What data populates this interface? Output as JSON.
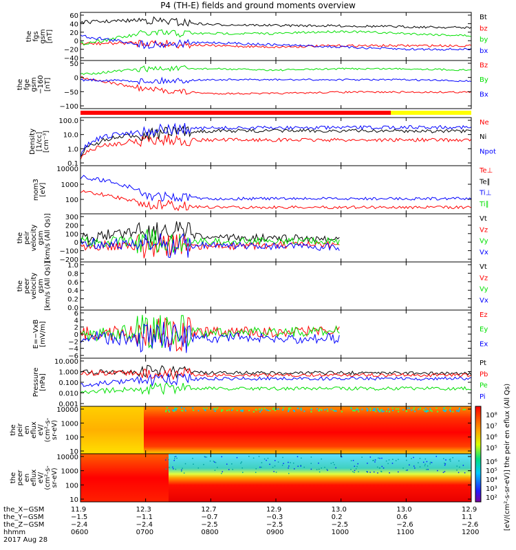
{
  "title": "P4 (TH-E) fields and ground moments overview",
  "colors": {
    "black": "#000000",
    "red": "#ff0000",
    "green": "#00e000",
    "blue": "#0000ff",
    "yellow": "#ffff00"
  },
  "panels": [
    {
      "id": "fgs",
      "ylabel": [
        "the",
        "fgs",
        "gsm",
        "[nT]"
      ],
      "ticks": [
        "60",
        "40",
        "20",
        "0",
        "−20",
        "−40"
      ],
      "legend": [
        {
          "t": "Bt",
          "c": "black"
        },
        {
          "t": "bz",
          "c": "red"
        },
        {
          "t": "by",
          "c": "green"
        },
        {
          "t": "bx",
          "c": "blue"
        }
      ]
    },
    {
      "id": "fge",
      "ylabel": [
        "the",
        "fge",
        "gsm",
        "−160",
        "[nT]"
      ],
      "ticks": [
        "50",
        "0",
        "−50",
        "−100"
      ],
      "legend": [
        {
          "t": "Bz",
          "c": "red"
        },
        {
          "t": "By",
          "c": "green"
        },
        {
          "t": "Bx",
          "c": "blue"
        }
      ]
    },
    {
      "id": "dens",
      "ylabel": [
        "Density",
        "[1/cc]",
        "[cm⁻³]"
      ],
      "ticks": [
        "100.0",
        "10.0",
        "1.0",
        "0.1"
      ],
      "legend": [
        {
          "t": "Ne",
          "c": "red"
        },
        {
          "t": "Ni",
          "c": "black"
        },
        {
          "t": "Npot",
          "c": "blue"
        }
      ]
    },
    {
      "id": "temp",
      "ylabel": [
        "mom3",
        "[eV]"
      ],
      "ticks": [
        "1000",
        "100"
      ],
      "ticks2": [
        "10000"
      ],
      "legend": [
        {
          "t": "Te⊥",
          "c": "red"
        },
        {
          "t": "Te∥",
          "c": "black"
        },
        {
          "t": "Ti⊥",
          "c": "blue"
        },
        {
          "t": "Ti∥",
          "c": "green"
        }
      ]
    },
    {
      "id": "vi",
      "ylabel": [
        "the",
        "peir",
        "velocity",
        "gsm",
        "[km/s (All Qs)]"
      ],
      "ticks": [
        "300",
        "200",
        "100",
        "0",
        "−100",
        "−200"
      ],
      "legend": [
        {
          "t": "Vt",
          "c": "black"
        },
        {
          "t": "Vz",
          "c": "red"
        },
        {
          "t": "Vy",
          "c": "green"
        },
        {
          "t": "Vx",
          "c": "blue"
        }
      ]
    },
    {
      "id": "ve",
      "ylabel": [
        "the",
        "peer",
        "velocity",
        "gsm",
        "[km/s (All Qs)]"
      ],
      "ticks": [
        "1.0",
        "0.8",
        "0.6",
        "0.4",
        "0.2",
        "0.0"
      ],
      "legend": [
        {
          "t": "Vt",
          "c": "black"
        },
        {
          "t": "Vz",
          "c": "red"
        },
        {
          "t": "Vy",
          "c": "green"
        },
        {
          "t": "Vx",
          "c": "blue"
        }
      ]
    },
    {
      "id": "ef",
      "ylabel": [
        "E=−VxB",
        "[mV/m]"
      ],
      "ticks": [
        "6",
        "4",
        "2",
        "0",
        "−2",
        "−4",
        "−6"
      ],
      "legend": [
        {
          "t": "Ez",
          "c": "red"
        },
        {
          "t": "Ey",
          "c": "green"
        },
        {
          "t": "Ex",
          "c": "blue"
        }
      ]
    },
    {
      "id": "pres",
      "ylabel": [
        "Pressure",
        "[nPa]"
      ],
      "ticks": [
        "10.000",
        "1.000",
        "0.100",
        "0.010",
        "0.001"
      ],
      "legend": [
        {
          "t": "Pt",
          "c": "black"
        },
        {
          "t": "Pb",
          "c": "red"
        },
        {
          "t": "Pe",
          "c": "green"
        },
        {
          "t": "Pi",
          "c": "blue"
        }
      ]
    },
    {
      "id": "ispec",
      "ylabel": [
        "the",
        "peir",
        "en",
        "eflux",
        "eV/",
        "(cm²-s-",
        "sr-eV)"
      ],
      "ticks": [
        "10000",
        "1000",
        "100",
        "10"
      ],
      "legend": []
    },
    {
      "id": "espec",
      "ylabel": [
        "the",
        "peer",
        "en",
        "eflux",
        "eV/",
        "(cm²-s-",
        "sr-eV)"
      ],
      "ticks": [
        "10000",
        "1000",
        "100",
        "10"
      ],
      "legend": []
    }
  ],
  "colorbar": {
    "ticks_top": [
      "10⁸",
      "10⁷",
      "10⁶",
      "10⁵"
    ],
    "ticks_bottom": [
      "10⁶",
      "10⁵",
      "10⁴",
      "10³",
      "10²"
    ],
    "label": "[eV/(cm²-s-sr-eV)] the peir en eflux (All Qs)"
  },
  "xaxis": {
    "rows": [
      {
        "name": "the_X−GSM",
        "vals": [
          "11.9",
          "12.3",
          "12.7",
          "12.9",
          "13.0",
          "13.0",
          "12.9"
        ]
      },
      {
        "name": "the_Y−GSM",
        "vals": [
          "−1.5",
          "−1.1",
          "−0.7",
          "−0.3",
          "0.2",
          "0.6",
          "1.1"
        ]
      },
      {
        "name": "the_Z−GSM",
        "vals": [
          "−2.4",
          "−2.4",
          "−2.5",
          "−2.5",
          "−2.5",
          "−2.6",
          "−2.6"
        ]
      },
      {
        "name": "hhmm",
        "vals": [
          "0600",
          "0700",
          "0800",
          "0900",
          "1000",
          "1100",
          "1200"
        ]
      }
    ],
    "date": "2017 Aug 28"
  },
  "chart_data": {
    "type": "line",
    "x": [
      "0600",
      "0700",
      "0800",
      "0900",
      "1000",
      "1100",
      "1200"
    ],
    "series": [
      {
        "name": "Bt",
        "panel": "fgs",
        "values": [
          40,
          45,
          35,
          33,
          32,
          30,
          28
        ]
      },
      {
        "name": "bz",
        "panel": "fgs",
        "values": [
          -8,
          -5,
          -12,
          -15,
          -12,
          -12,
          -12
        ]
      },
      {
        "name": "by",
        "panel": "fgs",
        "values": [
          -8,
          15,
          15,
          15,
          20,
          15,
          10
        ]
      },
      {
        "name": "bx",
        "panel": "fgs",
        "values": [
          10,
          -10,
          -5,
          -10,
          -15,
          -20,
          -20
        ]
      },
      {
        "name": "Bz",
        "panel": "fge",
        "values": [
          -5,
          -50,
          -65,
          -65,
          -60,
          -60,
          -60
        ]
      },
      {
        "name": "By",
        "panel": "fge",
        "values": [
          5,
          25,
          25,
          20,
          25,
          25,
          20
        ]
      },
      {
        "name": "Bx",
        "panel": "fge",
        "values": [
          -15,
          -20,
          -15,
          -15,
          -15,
          -15,
          -20
        ]
      },
      {
        "name": "Ne",
        "panel": "dens",
        "values": [
          0.3,
          5,
          5,
          5,
          5,
          5,
          5
        ]
      },
      {
        "name": "Ni",
        "panel": "dens",
        "values": [
          0.3,
          12,
          20,
          20,
          20,
          20,
          18
        ]
      },
      {
        "name": "Npot",
        "panel": "dens",
        "values": [
          0.3,
          20,
          30,
          32,
          32,
          35,
          35
        ]
      },
      {
        "name": "Te⊥",
        "panel": "temp",
        "values": [
          300,
          80,
          60,
          60,
          60,
          60,
          60
        ]
      },
      {
        "name": "Ti⊥",
        "panel": "temp",
        "values": [
          1500,
          200,
          150,
          150,
          150,
          150,
          150
        ]
      },
      {
        "name": "Vt",
        "panel": "vi",
        "values": [
          50,
          150,
          60,
          60,
          50,
          null,
          null
        ]
      },
      {
        "name": "Vz",
        "panel": "vi",
        "values": [
          -10,
          -30,
          -30,
          -20,
          -20,
          null,
          null
        ]
      },
      {
        "name": "Vy",
        "panel": "vi",
        "values": [
          20,
          20,
          20,
          30,
          20,
          null,
          null
        ]
      },
      {
        "name": "Vx",
        "panel": "vi",
        "values": [
          10,
          -20,
          -20,
          -30,
          -40,
          null,
          null
        ]
      },
      {
        "name": "Ez",
        "panel": "ef",
        "values": [
          0.5,
          0,
          0.5,
          0.5,
          1,
          null,
          null
        ]
      },
      {
        "name": "Ey",
        "panel": "ef",
        "values": [
          0,
          0.5,
          0.3,
          0.5,
          0.8,
          null,
          null
        ]
      },
      {
        "name": "Ex",
        "panel": "ef",
        "values": [
          -0.5,
          -1.5,
          -0.8,
          -1.2,
          -1,
          null,
          null
        ]
      },
      {
        "name": "Pt",
        "panel": "pres",
        "values": [
          0.7,
          0.8,
          0.6,
          0.6,
          0.6,
          0.6,
          0.5
        ]
      },
      {
        "name": "Pb",
        "panel": "pres",
        "values": [
          0.6,
          0.6,
          0.4,
          0.4,
          0.4,
          0.4,
          0.4
        ]
      },
      {
        "name": "Pe",
        "panel": "pres",
        "values": [
          0.015,
          0.03,
          0.03,
          0.03,
          0.03,
          0.03,
          0.03
        ]
      },
      {
        "name": "Pi",
        "panel": "pres",
        "values": [
          0.05,
          0.15,
          0.2,
          0.2,
          0.2,
          0.2,
          0.2
        ]
      }
    ]
  }
}
